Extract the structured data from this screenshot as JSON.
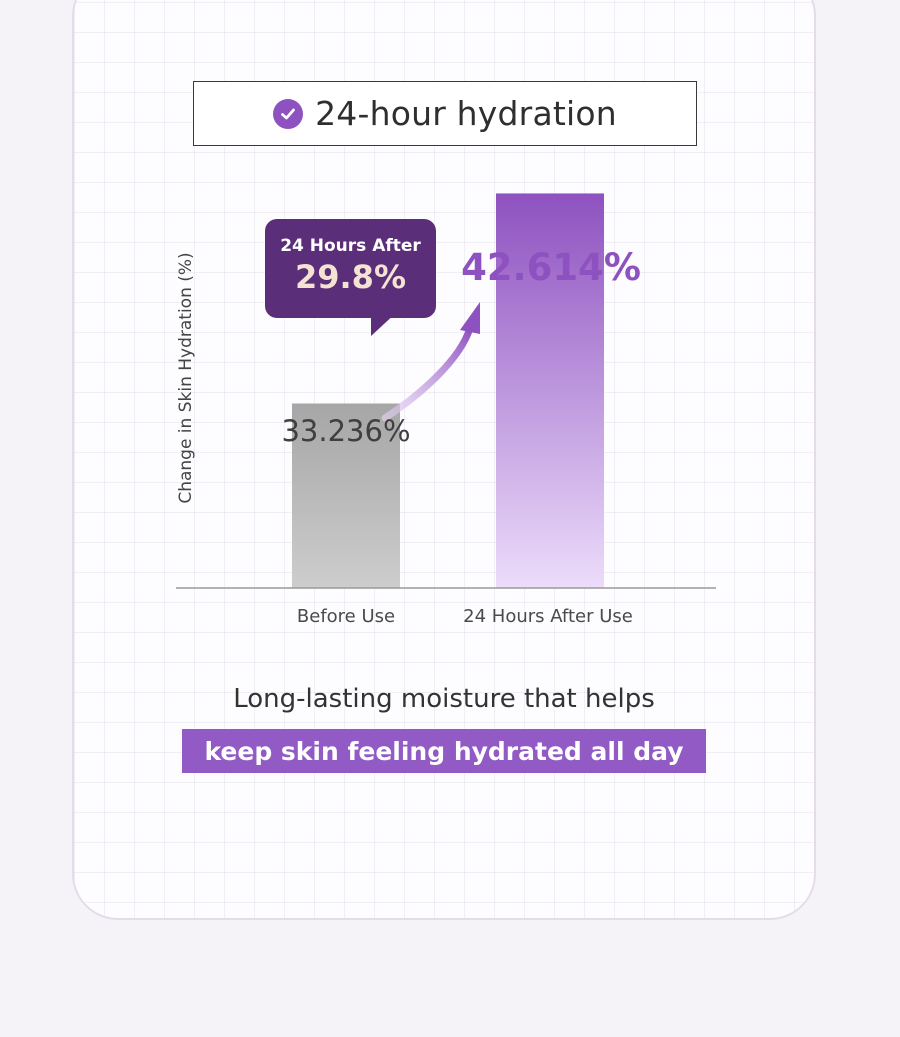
{
  "header": {
    "title": "24-hour hydration",
    "icon": "check-circle-icon"
  },
  "chart_data": {
    "type": "bar",
    "ylabel": "Change in Skin Hydration (%)",
    "xlabel": "",
    "categories": [
      "Before Use",
      "24 Hours After Use"
    ],
    "values": [
      33.236,
      42.614
    ],
    "value_labels": [
      "33.236%",
      "42.614%"
    ],
    "ylim": [
      25,
      45
    ],
    "grid": false,
    "annotation": {
      "caption": "24 Hours After",
      "value": "29.8%"
    },
    "colors": {
      "before_top": "#a6a6a6",
      "before_bottom": "#cdcdcd",
      "after_top": "#8e52c0",
      "after_bottom": "#ecdcfa",
      "accent": "#8e52c0",
      "bubble": "#5a2e78"
    }
  },
  "description": {
    "line1": "Long-lasting moisture that helps",
    "line2": "keep skin feeling hydrated all day"
  }
}
